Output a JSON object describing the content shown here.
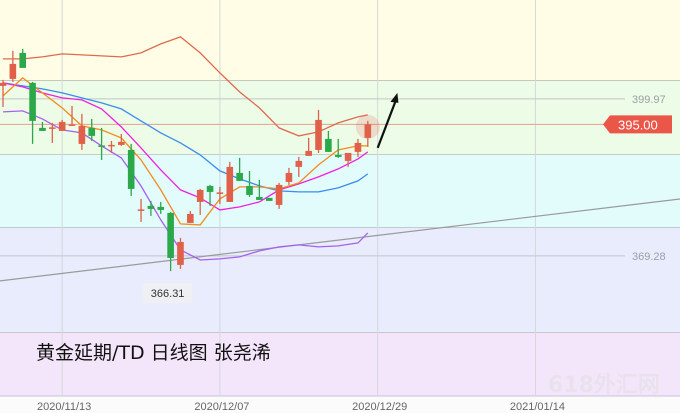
{
  "chart_data": {
    "type": "candlestick",
    "title": "黄金延期/TD  日线图  张尧浠",
    "watermark": "618外汇网",
    "ylim": [
      341.9,
      419.3
    ],
    "colors": {
      "up": "#e0604a",
      "down": "#2aa84a",
      "price_tag": "#ea5748",
      "arrow": "#111111",
      "trendline": "#9a9a9a"
    },
    "bands": [
      {
        "from": 403.49,
        "to": 419.3,
        "color": "#fffde6"
      },
      {
        "from": 389.02,
        "to": 403.49,
        "color": "#ecfce6"
      },
      {
        "from": 374.75,
        "to": 389.02,
        "color": "#e2fbfb"
      },
      {
        "from": 354.23,
        "to": 374.75,
        "color": "#e8ecfc"
      },
      {
        "from": 341.9,
        "to": 354.23,
        "color": "#f4e6fa"
      }
    ],
    "x_ticks": [
      {
        "label": "2020/11/13",
        "slot": 6
      },
      {
        "label": "2020/12/07",
        "slot": 22
      },
      {
        "label": "2020/12/29",
        "slot": 38
      },
      {
        "label": "2021/01/14",
        "slot": 54
      }
    ],
    "levels": [
      {
        "price": 399.97,
        "label": "399.97"
      },
      {
        "price": 369.28,
        "label": "369.28"
      }
    ],
    "current_price": {
      "price": 395.0,
      "label": "395.00"
    },
    "low_label": {
      "price": 366.31,
      "label": "366.31",
      "slot": 17
    },
    "candles": [
      {
        "d": "2020/11/05",
        "o": 402.51,
        "h": 403.68,
        "l": 398.41,
        "c": 403.1
      },
      {
        "d": "2020/11/06",
        "o": 403.88,
        "h": 409.35,
        "l": 403.29,
        "c": 406.81
      },
      {
        "d": "2020/11/09",
        "o": 408.96,
        "h": 409.75,
        "l": 406.03,
        "c": 406.03
      },
      {
        "d": "2020/11/10",
        "o": 403.1,
        "h": 403.29,
        "l": 391.17,
        "c": 395.67
      },
      {
        "d": "2020/11/11",
        "o": 394.3,
        "h": 395.47,
        "l": 393.71,
        "c": 393.71
      },
      {
        "d": "2020/11/12",
        "o": 394.3,
        "h": 395.28,
        "l": 391.37,
        "c": 394.4
      },
      {
        "d": "2020/11/13",
        "o": 393.71,
        "h": 395.86,
        "l": 393.71,
        "c": 395.47
      },
      {
        "d": "2020/11/16",
        "o": 394.79,
        "h": 398.6,
        "l": 394.69,
        "c": 394.98
      },
      {
        "d": "2020/11/17",
        "o": 391.17,
        "h": 397.04,
        "l": 390.0,
        "c": 394.69
      },
      {
        "d": "2020/11/18",
        "o": 394.3,
        "h": 396.06,
        "l": 391.76,
        "c": 392.74
      },
      {
        "d": "2020/11/19",
        "o": 390.88,
        "h": 394.3,
        "l": 388.04,
        "c": 390.68
      },
      {
        "d": "2020/11/20",
        "o": 390.78,
        "h": 391.76,
        "l": 389.41,
        "c": 390.98
      },
      {
        "d": "2020/11/23",
        "o": 390.98,
        "h": 393.13,
        "l": 390.78,
        "c": 391.56
      },
      {
        "d": "2020/11/24",
        "o": 390.0,
        "h": 391.17,
        "l": 381.01,
        "c": 382.38
      },
      {
        "d": "2020/11/25",
        "o": 378.17,
        "h": 380.42,
        "l": 375.93,
        "c": 378.37
      },
      {
        "d": "2020/11/26",
        "o": 379.05,
        "h": 380.03,
        "l": 377.1,
        "c": 378.47
      },
      {
        "d": "2020/11/27",
        "o": 378.86,
        "h": 379.83,
        "l": 377.49,
        "c": 378.27
      },
      {
        "d": "2020/11/30",
        "o": 377.68,
        "h": 377.88,
        "l": 366.31,
        "c": 368.88
      },
      {
        "d": "2020/12/01",
        "o": 367.52,
        "h": 372.8,
        "l": 366.73,
        "c": 372.01
      },
      {
        "d": "2020/12/02",
        "o": 375.73,
        "h": 378.07,
        "l": 375.73,
        "c": 377.49
      },
      {
        "d": "2020/12/03",
        "o": 379.83,
        "h": 382.38,
        "l": 377.29,
        "c": 382.18
      },
      {
        "d": "2020/12/04",
        "o": 382.96,
        "h": 383.16,
        "l": 379.05,
        "c": 381.79
      },
      {
        "d": "2020/12/07",
        "o": 381.5,
        "h": 382.77,
        "l": 379.44,
        "c": 381.69
      },
      {
        "d": "2020/12/08",
        "o": 379.83,
        "h": 387.65,
        "l": 379.83,
        "c": 386.68
      },
      {
        "d": "2020/12/09",
        "o": 385.5,
        "h": 388.44,
        "l": 383.94,
        "c": 383.94
      },
      {
        "d": "2020/12/10",
        "o": 382.96,
        "h": 385.89,
        "l": 380.81,
        "c": 381.2
      },
      {
        "d": "2020/12/11",
        "o": 380.81,
        "h": 384.13,
        "l": 380.22,
        "c": 380.22
      },
      {
        "d": "2020/12/14",
        "o": 380.62,
        "h": 380.62,
        "l": 380.03,
        "c": 380.03
      },
      {
        "d": "2020/12/15",
        "o": 379.25,
        "h": 383.55,
        "l": 378.47,
        "c": 383.16
      },
      {
        "d": "2020/12/16",
        "o": 383.74,
        "h": 386.48,
        "l": 383.16,
        "c": 385.5
      },
      {
        "d": "2020/12/17",
        "o": 386.68,
        "h": 388.63,
        "l": 384.72,
        "c": 387.85
      },
      {
        "d": "2020/12/18",
        "o": 388.83,
        "h": 392.35,
        "l": 388.83,
        "c": 389.8
      },
      {
        "d": "2020/12/21",
        "o": 390.0,
        "h": 397.82,
        "l": 389.41,
        "c": 395.86
      },
      {
        "d": "2020/12/22",
        "o": 392.15,
        "h": 393.71,
        "l": 389.61,
        "c": 389.61
      },
      {
        "d": "2020/12/23",
        "o": 389.02,
        "h": 392.15,
        "l": 388.44,
        "c": 388.63
      },
      {
        "d": "2020/12/24",
        "o": 387.85,
        "h": 389.41,
        "l": 386.68,
        "c": 389.41
      },
      {
        "d": "2020/12/25",
        "o": 389.61,
        "h": 392.15,
        "l": 388.63,
        "c": 391.37
      },
      {
        "d": "2020/12/28",
        "o": 392.35,
        "h": 395.67,
        "l": 390.59,
        "c": 395.0
      }
    ],
    "line_dates": [
      "2020/11/05",
      "2020/11/09",
      "2020/11/11",
      "2020/11/13",
      "2020/11/17",
      "2020/11/19",
      "2020/11/23",
      "2020/11/25",
      "2020/11/27",
      "2020/12/01",
      "2020/12/03",
      "2020/12/07",
      "2020/12/09",
      "2020/12/11",
      "2020/12/15",
      "2020/12/17",
      "2020/12/21",
      "2020/12/23",
      "2020/12/25",
      "2020/12/28"
    ],
    "lines": [
      {
        "color": "#e06a4e",
        "values": [
          407.79,
          407.79,
          408.18,
          408.77,
          408.57,
          408.38,
          408.18,
          408.96,
          410.72,
          412.09,
          408.96,
          405.05,
          401.34,
          398.21,
          394.3,
          392.74,
          393.52,
          395.28,
          396.45,
          396.84
        ]
      },
      {
        "color": "#3a8cf0",
        "values": [
          403.1,
          402.51,
          401.93,
          401.14,
          400.17,
          399.19,
          398.01,
          395.67,
          393.32,
          391.37,
          389.02,
          385.89,
          384.33,
          382.96,
          381.98,
          381.79,
          381.79,
          382.57,
          383.94,
          385.31
        ]
      },
      {
        "color": "#f020e0",
        "values": [
          403.1,
          402.32,
          401.14,
          400.17,
          399.77,
          398.01,
          394.5,
          390.39,
          386.09,
          382.18,
          380.62,
          378.27,
          378.86,
          379.83,
          382.18,
          383.35,
          384.72,
          386.29,
          388.24,
          389.61
        ]
      },
      {
        "color": "#f58a1f",
        "values": [
          400.56,
          404.08,
          401.14,
          398.21,
          394.69,
          393.91,
          392.35,
          388.04,
          382.18,
          375.53,
          375.34,
          380.42,
          382.77,
          382.77,
          382.38,
          383.55,
          387.07,
          390.0,
          390.78,
          390.78
        ]
      },
      {
        "color": "#a860f0",
        "values": [
          397.43,
          397.62,
          396.06,
          393.91,
          393.32,
          390.78,
          388.44,
          382.96,
          376.32,
          370.45,
          368.49,
          368.69,
          369.08,
          370.26,
          371.04,
          371.43,
          371.04,
          371.23,
          371.82,
          373.77
        ]
      }
    ],
    "trendline": {
      "start": {
        "slot": -0.3,
        "price": 364.4
      },
      "end": {
        "slot": 68.7,
        "price": 380.42
      }
    },
    "arrow": {
      "start": {
        "slot": 38.0,
        "price": 390.39
      },
      "end": {
        "slot": 40.0,
        "price": 401.14
      }
    }
  }
}
